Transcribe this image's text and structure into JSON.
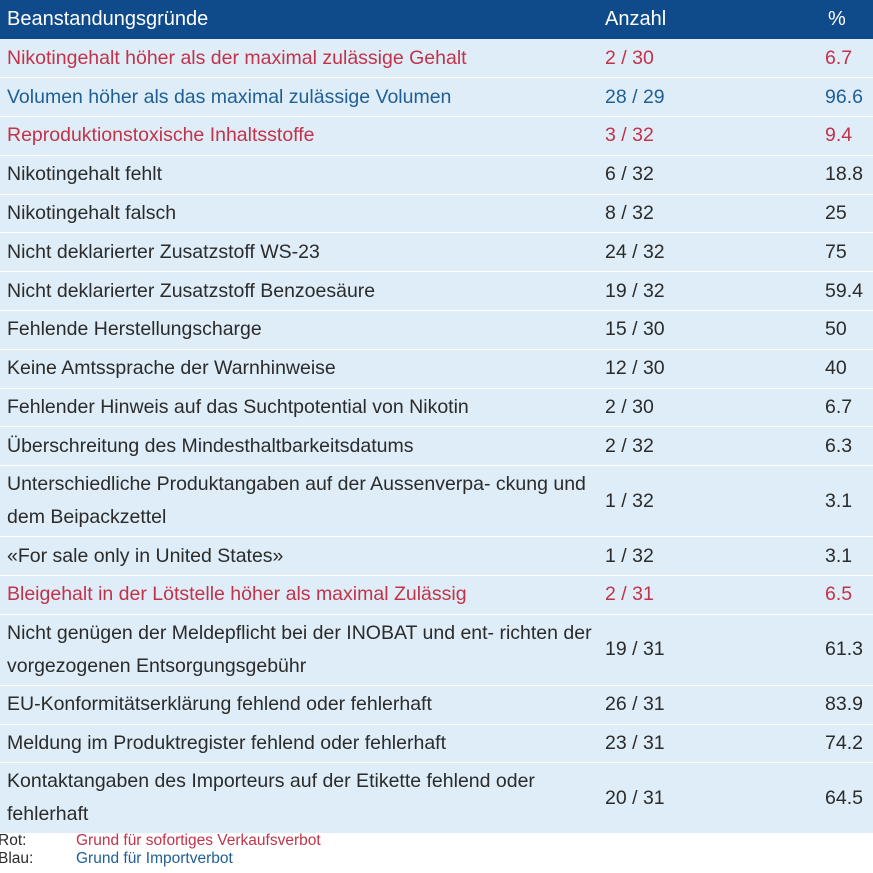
{
  "colors": {
    "header_bg": "#0f4a8a",
    "row_bg": "#deedf7",
    "red": "#c2334a",
    "blue": "#1f5f95"
  },
  "table": {
    "headers": {
      "reason": "Beanstandungsgründe",
      "count": "Anzahl",
      "percent": "%"
    },
    "rows": [
      {
        "reason": "Nikotingehalt höher als der maximal zulässige Gehalt",
        "count": "2 / 30",
        "percent": "6.7",
        "category": "red"
      },
      {
        "reason": "Volumen höher als das maximal zulässige Volumen",
        "count": "28 / 29",
        "percent": "96.6",
        "category": "blue"
      },
      {
        "reason": "Reproduktionstoxische Inhaltsstoffe",
        "count": "3 / 32",
        "percent": "9.4",
        "category": "red"
      },
      {
        "reason": "Nikotingehalt fehlt",
        "count": "6 / 32",
        "percent": "18.8",
        "category": ""
      },
      {
        "reason": "Nikotingehalt falsch",
        "count": "8 / 32",
        "percent": "25",
        "category": ""
      },
      {
        "reason": "Nicht deklarierter Zusatzstoff WS-23",
        "count": "24 / 32",
        "percent": "75",
        "category": ""
      },
      {
        "reason": "Nicht deklarierter Zusatzstoff Benzoesäure",
        "count": "19 / 32",
        "percent": "59.4",
        "category": ""
      },
      {
        "reason": "Fehlende Herstellungscharge",
        "count": "15 / 30",
        "percent": "50",
        "category": ""
      },
      {
        "reason": "Keine Amtssprache der Warnhinweise",
        "count": "12 / 30",
        "percent": "40",
        "category": ""
      },
      {
        "reason": "Fehlender Hinweis auf das Suchtpotential von Nikotin",
        "count": "2 / 30",
        "percent": "6.7",
        "category": ""
      },
      {
        "reason": "Überschreitung des Mindesthaltbarkeitsdatums",
        "count": "2 / 32",
        "percent": "6.3",
        "category": ""
      },
      {
        "reason": "Unterschiedliche Produktangaben auf der Aussenverpa- ckung und dem Beipackzettel",
        "count": "1 / 32",
        "percent": "3.1",
        "category": ""
      },
      {
        "reason": "«For sale only in United States»",
        "count": "1 / 32",
        "percent": "3.1",
        "category": ""
      },
      {
        "reason": "Bleigehalt in der Lötstelle höher als maximal Zulässig",
        "count": "2 / 31",
        "percent": "6.5",
        "category": "red"
      },
      {
        "reason": "Nicht genügen der Meldepflicht bei der INOBAT und ent- richten der vorgezogenen Entsorgungsgebühr",
        "count": "19 / 31",
        "percent": "61.3",
        "category": ""
      },
      {
        "reason": "EU-Konformitätserklärung fehlend oder fehlerhaft",
        "count": "26 / 31",
        "percent": "83.9",
        "category": ""
      },
      {
        "reason": "Meldung im Produktregister fehlend oder fehlerhaft",
        "count": "23 / 31",
        "percent": "74.2",
        "category": ""
      },
      {
        "reason": "Kontaktangaben des Importeurs auf der Etikette fehlend oder fehlerhaft",
        "count": "20 / 31",
        "percent": "64.5",
        "category": ""
      }
    ]
  },
  "legend": {
    "red_key": "Rot:",
    "red_text": "Grund für sofortiges Verkaufsverbot",
    "blue_key": "Blau:",
    "blue_text": "Grund für Importverbot"
  }
}
